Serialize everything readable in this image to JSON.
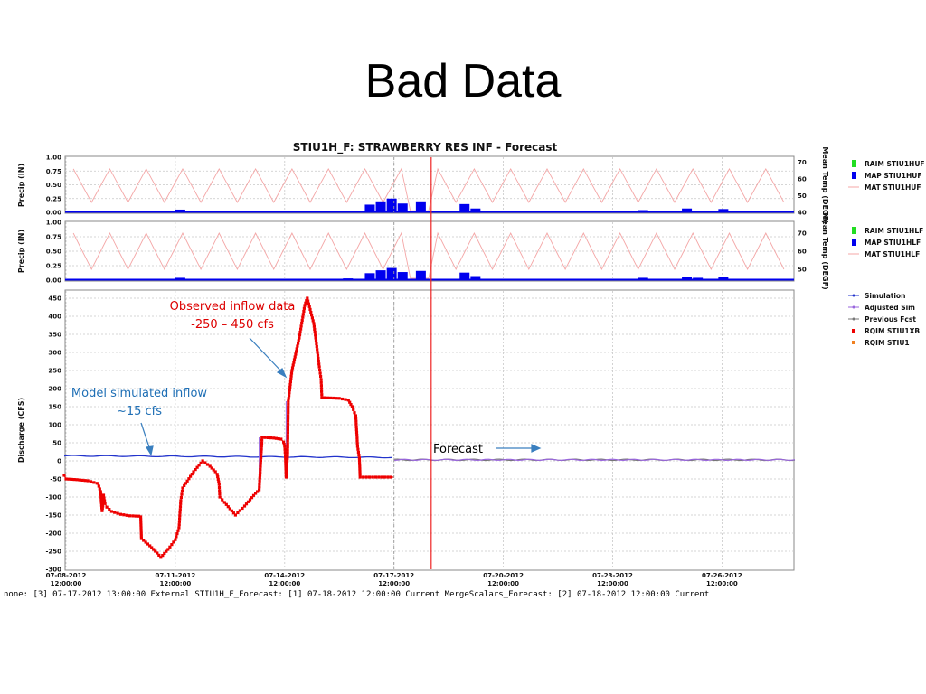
{
  "slide_title": "Bad Data",
  "chart_title": "STIU1H_F: STRAWBERRY RES INF - Forecast",
  "footer": "none: [3] 07-17-2012 13:00:00 External STIU1H_F_Forecast: [1] 07-18-2012 12:00:00 Current  MergeScalars_Forecast: [2] 07-18-2012 12:00:00 Current",
  "colors": {
    "precip_bar": "#0000ee",
    "raim": "#22dd22",
    "temp_line": "#f4a7a7",
    "simulation": "#2233cc",
    "adjusted_sim": "#9966dd",
    "previous_fcst": "#777777",
    "observed": "#ee0000",
    "rqim_stiu1": "#f08020",
    "forecast_line": "#ee2222",
    "annotation_red": "#dd0000",
    "annotation_blue": "#1f6fb5"
  },
  "chart_data": [
    {
      "type": "bar",
      "panel": "precip-upper",
      "ylabel": "Precip (IN)",
      "ylabel_right": "Mean Temp (DEGF)",
      "y_ticks": [
        "1.00",
        "0.75",
        "0.50",
        "0.25",
        "0.00"
      ],
      "y_ticks_right": [
        "70",
        "60",
        "50",
        "40"
      ],
      "ylim": [
        0,
        1
      ],
      "ylim_right": [
        40,
        73
      ],
      "legend": [
        "RAIM STIU1HUF",
        "MAP STIU1HUF",
        "MAT STIU1HUF"
      ],
      "precip_bars": [
        {
          "day": 0.6,
          "value": 0.02
        },
        {
          "day": 1.5,
          "value": 0.02
        },
        {
          "day": 1.8,
          "value": 0.03
        },
        {
          "day": 3.0,
          "value": 0.05
        },
        {
          "day": 5.5,
          "value": 0.03
        },
        {
          "day": 7.6,
          "value": 0.03
        },
        {
          "day": 8.2,
          "value": 0.14
        },
        {
          "day": 8.5,
          "value": 0.2
        },
        {
          "day": 8.8,
          "value": 0.25
        },
        {
          "day": 9.1,
          "value": 0.16
        },
        {
          "day": 9.6,
          "value": 0.2
        },
        {
          "day": 10.8,
          "value": 0.15
        },
        {
          "day": 11.1,
          "value": 0.07
        },
        {
          "day": 12.0,
          "value": 0.02
        },
        {
          "day": 15.7,
          "value": 0.04
        },
        {
          "day": 16.2,
          "value": 0.02
        },
        {
          "day": 16.9,
          "value": 0.07
        },
        {
          "day": 17.2,
          "value": 0.03
        },
        {
          "day": 17.9,
          "value": 0.06
        },
        {
          "day": 18.2,
          "value": 0.02
        }
      ]
    },
    {
      "type": "bar",
      "panel": "precip-lower",
      "ylabel": "Precip (IN)",
      "ylabel_right": "Mean Temp (DEGF)",
      "y_ticks": [
        "1.00",
        "0.75",
        "0.50",
        "0.25",
        "0.00"
      ],
      "y_ticks_right": [
        "70",
        "60",
        "50"
      ],
      "ylim": [
        0,
        1
      ],
      "ylim_right": [
        44,
        76
      ],
      "legend": [
        "RAIM STIU1HLF",
        "MAP STIU1HLF",
        "MAT STIU1HLF"
      ],
      "precip_bars": [
        {
          "day": 0.6,
          "value": 0.02
        },
        {
          "day": 1.8,
          "value": 0.02
        },
        {
          "day": 3.0,
          "value": 0.04
        },
        {
          "day": 5.5,
          "value": 0.02
        },
        {
          "day": 7.6,
          "value": 0.03
        },
        {
          "day": 8.2,
          "value": 0.12
        },
        {
          "day": 8.5,
          "value": 0.17
        },
        {
          "day": 8.8,
          "value": 0.21
        },
        {
          "day": 9.1,
          "value": 0.14
        },
        {
          "day": 9.6,
          "value": 0.16
        },
        {
          "day": 10.8,
          "value": 0.13
        },
        {
          "day": 11.1,
          "value": 0.07
        },
        {
          "day": 12.0,
          "value": 0.02
        },
        {
          "day": 15.7,
          "value": 0.04
        },
        {
          "day": 16.2,
          "value": 0.02
        },
        {
          "day": 16.9,
          "value": 0.06
        },
        {
          "day": 17.2,
          "value": 0.04
        },
        {
          "day": 17.9,
          "value": 0.06
        }
      ]
    },
    {
      "type": "line",
      "panel": "discharge",
      "ylabel": "Discharge (CFS)",
      "ylim": [
        -300,
        470
      ],
      "y_ticks": [
        "450",
        "400",
        "350",
        "300",
        "250",
        "200",
        "150",
        "100",
        "50",
        "0",
        "-50",
        "-100",
        "-150",
        "-200",
        "-250",
        "-300"
      ],
      "x_ticks": [
        {
          "day": 0,
          "label1": "07-08-2012",
          "label2": "12:00:00"
        },
        {
          "day": 3,
          "label1": "07-11-2012",
          "label2": "12:00:00"
        },
        {
          "day": 6,
          "label1": "07-14-2012",
          "label2": "12:00:00"
        },
        {
          "day": 9,
          "label1": "07-17-2012",
          "label2": "12:00:00"
        },
        {
          "day": 12,
          "label1": "07-20-2012",
          "label2": "12:00:00"
        },
        {
          "day": 15,
          "label1": "07-23-2012",
          "label2": "12:00:00"
        },
        {
          "day": 18,
          "label1": "07-26-2012",
          "label2": "12:00:00"
        }
      ],
      "legend": [
        "Simulation",
        "Adjusted Sim",
        "Previous Fcst",
        "RQIM STIU1XB",
        "RQIM STIU1"
      ],
      "simulation_value": 14,
      "forecast_value": 3,
      "observed": [
        [
          -0.05,
          -40
        ],
        [
          0.0,
          -50
        ],
        [
          0.3,
          -52
        ],
        [
          0.6,
          -55
        ],
        [
          0.85,
          -62
        ],
        [
          0.9,
          -70
        ],
        [
          0.95,
          -85
        ],
        [
          0.97,
          -115
        ],
        [
          0.99,
          -138
        ],
        [
          1.01,
          -125
        ],
        [
          1.03,
          -95
        ],
        [
          1.07,
          -118
        ],
        [
          1.12,
          -128
        ],
        [
          1.25,
          -140
        ],
        [
          1.5,
          -148
        ],
        [
          1.75,
          -152
        ],
        [
          2.0,
          -153
        ],
        [
          2.05,
          -155
        ],
        [
          2.07,
          -215
        ],
        [
          2.3,
          -235
        ],
        [
          2.5,
          -255
        ],
        [
          2.6,
          -267
        ],
        [
          2.8,
          -245
        ],
        [
          3.0,
          -218
        ],
        [
          3.1,
          -185
        ],
        [
          3.15,
          -110
        ],
        [
          3.2,
          -75
        ],
        [
          3.5,
          -30
        ],
        [
          3.75,
          0
        ],
        [
          3.95,
          -15
        ],
        [
          4.1,
          -30
        ],
        [
          4.15,
          -37
        ],
        [
          4.2,
          -65
        ],
        [
          4.22,
          -100
        ],
        [
          4.35,
          -115
        ],
        [
          4.65,
          -150
        ],
        [
          4.9,
          -125
        ],
        [
          5.2,
          -90
        ],
        [
          5.3,
          -80
        ],
        [
          5.38,
          65
        ],
        [
          5.7,
          63
        ],
        [
          5.9,
          60
        ],
        [
          5.97,
          52
        ],
        [
          6.0,
          40
        ],
        [
          6.02,
          15
        ],
        [
          6.04,
          -45
        ],
        [
          6.08,
          15
        ],
        [
          6.1,
          165
        ],
        [
          6.2,
          250
        ],
        [
          6.4,
          340
        ],
        [
          6.55,
          430
        ],
        [
          6.62,
          450
        ],
        [
          6.8,
          380
        ],
        [
          6.95,
          260
        ],
        [
          7.0,
          225
        ],
        [
          7.02,
          175
        ],
        [
          7.5,
          173
        ],
        [
          7.75,
          168
        ],
        [
          7.85,
          150
        ],
        [
          7.95,
          125
        ],
        [
          8.0,
          40
        ],
        [
          8.05,
          8
        ],
        [
          8.07,
          -45
        ],
        [
          8.5,
          -45
        ],
        [
          9.0,
          -45
        ]
      ]
    }
  ],
  "annotations": {
    "observed_line1": "Observed inflow data",
    "observed_line2": "-250 – 450 cfs",
    "model_line1": "Model simulated inflow",
    "model_line2": "~15 cfs",
    "forecast": "Forecast"
  }
}
